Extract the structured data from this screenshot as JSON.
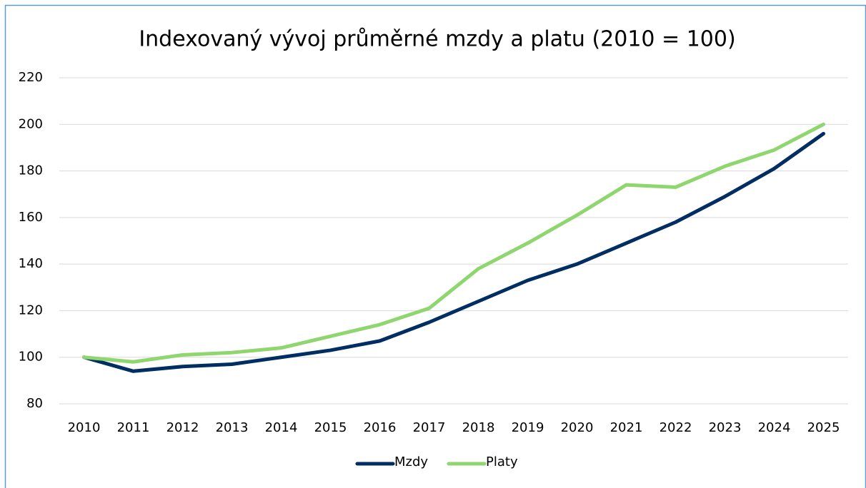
{
  "chart_data": {
    "type": "line",
    "title": "Indexovaný vývoj průměrné mzdy a platu (2010 = 100)",
    "categories": [
      "2010",
      "2011",
      "2012",
      "2013",
      "2014",
      "2015",
      "2016",
      "2017",
      "2018",
      "2019",
      "2020",
      "2021",
      "2022",
      "2023",
      "2024",
      "2025"
    ],
    "series": [
      {
        "name": "Mzdy",
        "color": "#002d62",
        "values": [
          100,
          94,
          96,
          97,
          100,
          103,
          107,
          115,
          124,
          133,
          140,
          149,
          158,
          169,
          181,
          196
        ]
      },
      {
        "name": "Platy",
        "color": "#8fd66e",
        "values": [
          100,
          98,
          101,
          102,
          104,
          109,
          114,
          121,
          138,
          149,
          161,
          174,
          173,
          182,
          189,
          200
        ]
      }
    ],
    "ylim": [
      80,
      220
    ],
    "yticks": [
      80,
      100,
      120,
      140,
      160,
      180,
      200,
      220
    ],
    "grid": true,
    "legend": "bottom"
  }
}
